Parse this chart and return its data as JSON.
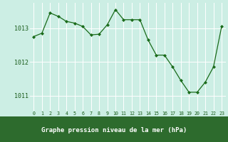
{
  "x": [
    0,
    1,
    2,
    3,
    4,
    5,
    6,
    7,
    8,
    9,
    10,
    11,
    12,
    13,
    14,
    15,
    16,
    17,
    18,
    19,
    20,
    21,
    22,
    23
  ],
  "y": [
    1012.75,
    1012.85,
    1013.45,
    1013.35,
    1013.2,
    1013.15,
    1013.05,
    1012.8,
    1012.82,
    1013.1,
    1013.55,
    1013.25,
    1013.25,
    1013.25,
    1012.65,
    1012.2,
    1012.2,
    1011.85,
    1011.45,
    1011.1,
    1011.1,
    1011.4,
    1011.85,
    1013.05
  ],
  "line_color": "#1a6b1a",
  "marker": "D",
  "marker_size": 2.0,
  "bg_color": "#cceee4",
  "grid_color": "#ffffff",
  "tick_label_color": "#1a5c1a",
  "xlabel": "Graphe pression niveau de la mer (hPa)",
  "xlabel_color": "#ffffff",
  "xlabel_bg": "#2d6b2d",
  "yticks": [
    1011,
    1012,
    1013
  ],
  "ylim": [
    1010.55,
    1013.75
  ],
  "xlim": [
    -0.5,
    23.5
  ],
  "xtick_labels": [
    "0",
    "1",
    "2",
    "3",
    "4",
    "5",
    "6",
    "7",
    "8",
    "9",
    "10",
    "11",
    "12",
    "13",
    "14",
    "15",
    "16",
    "17",
    "18",
    "19",
    "20",
    "21",
    "22",
    "23"
  ]
}
